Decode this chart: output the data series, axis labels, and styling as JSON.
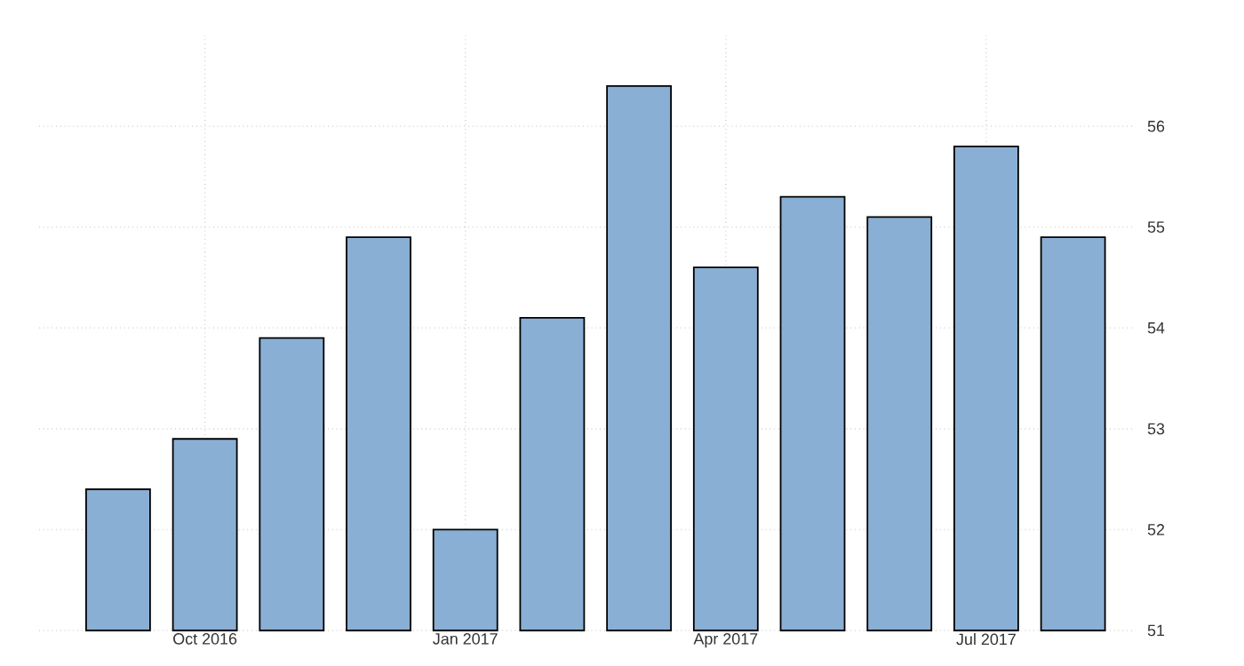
{
  "chart_data": {
    "type": "bar",
    "categories": [
      null,
      "Oct 2016",
      null,
      null,
      "Jan 2017",
      null,
      null,
      "Apr 2017",
      null,
      null,
      "Jul 2017",
      null
    ],
    "values": [
      52.4,
      52.9,
      53.9,
      54.9,
      52.0,
      54.1,
      56.4,
      54.6,
      55.3,
      55.1,
      55.8,
      54.9
    ],
    "color": "#8aafd4",
    "ylim": [
      51,
      56.9
    ],
    "yticks": [
      51,
      52,
      53,
      54,
      55,
      56
    ],
    "grid": true
  }
}
